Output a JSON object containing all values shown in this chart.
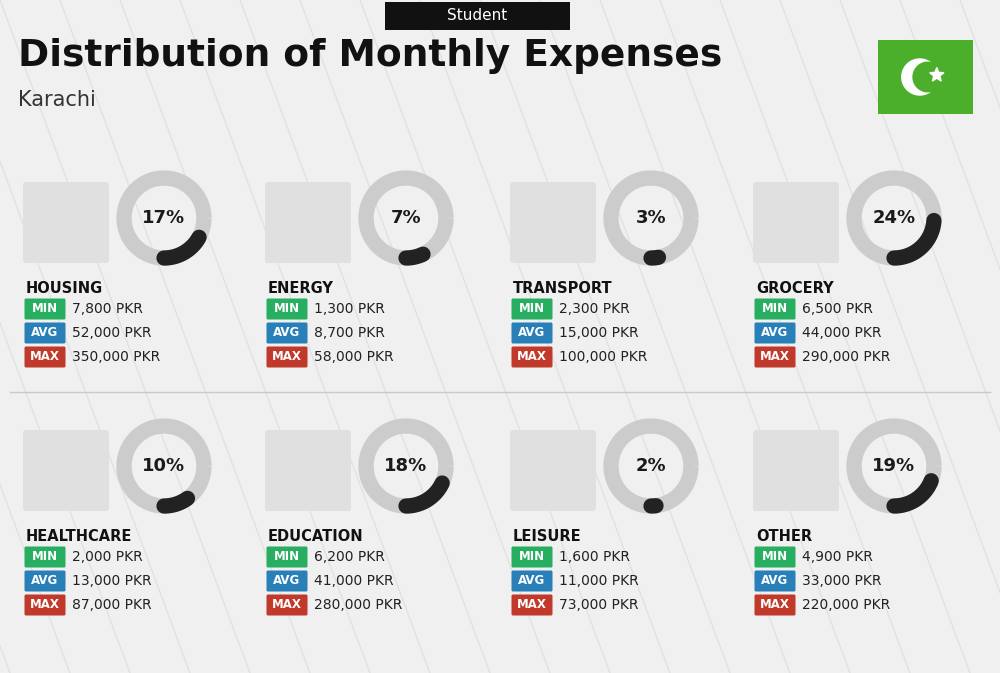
{
  "title": "Distribution of Monthly Expenses",
  "subtitle": "Student",
  "city": "Karachi",
  "background_color": "#f0f0f0",
  "header_bg": "#111111",
  "header_text_color": "#ffffff",
  "categories": [
    {
      "name": "HOUSING",
      "pct": 17,
      "min": "7,800 PKR",
      "avg": "52,000 PKR",
      "max": "350,000 PKR",
      "row": 0,
      "col": 0
    },
    {
      "name": "ENERGY",
      "pct": 7,
      "min": "1,300 PKR",
      "avg": "8,700 PKR",
      "max": "58,000 PKR",
      "row": 0,
      "col": 1
    },
    {
      "name": "TRANSPORT",
      "pct": 3,
      "min": "2,300 PKR",
      "avg": "15,000 PKR",
      "max": "100,000 PKR",
      "row": 0,
      "col": 2
    },
    {
      "name": "GROCERY",
      "pct": 24,
      "min": "6,500 PKR",
      "avg": "44,000 PKR",
      "max": "290,000 PKR",
      "row": 0,
      "col": 3
    },
    {
      "name": "HEALTHCARE",
      "pct": 10,
      "min": "2,000 PKR",
      "avg": "13,000 PKR",
      "max": "87,000 PKR",
      "row": 1,
      "col": 0
    },
    {
      "name": "EDUCATION",
      "pct": 18,
      "min": "6,200 PKR",
      "avg": "41,000 PKR",
      "max": "280,000 PKR",
      "row": 1,
      "col": 1
    },
    {
      "name": "LEISURE",
      "pct": 2,
      "min": "1,600 PKR",
      "avg": "11,000 PKR",
      "max": "73,000 PKR",
      "row": 1,
      "col": 2
    },
    {
      "name": "OTHER",
      "pct": 19,
      "min": "4,900 PKR",
      "avg": "33,000 PKR",
      "max": "220,000 PKR",
      "row": 1,
      "col": 3
    }
  ],
  "min_color": "#27ae60",
  "avg_color": "#2980b9",
  "max_color": "#c0392b",
  "ring_bg_color": "#cccccc",
  "ring_fg_color": "#222222",
  "pct_text_color": "#1a1a1a",
  "cat_text_color": "#111111",
  "pakistan_green": "#4caf2b",
  "diag_line_color": "#d8d8d8"
}
